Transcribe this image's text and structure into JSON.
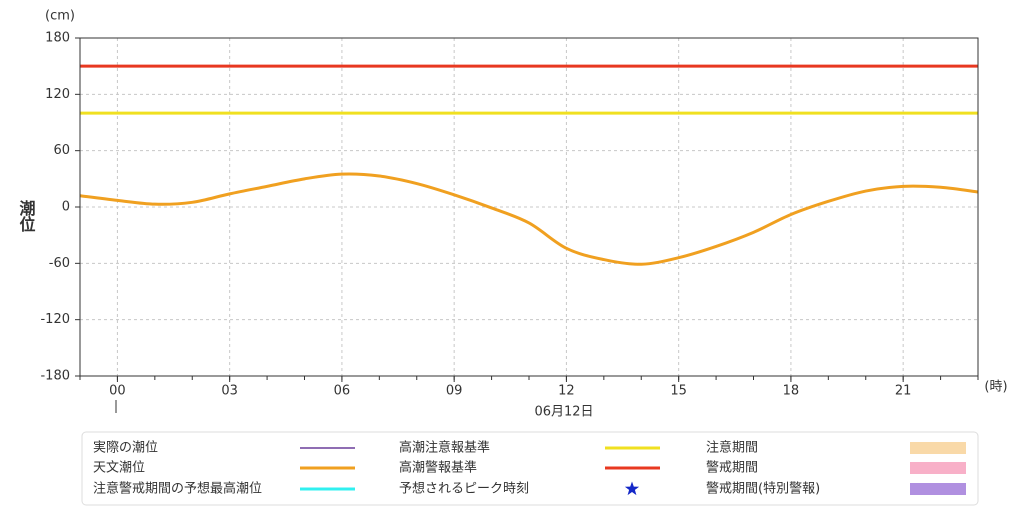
{
  "chart_data": {
    "type": "line",
    "y_label": "潮位",
    "y_unit": "(cm)",
    "x_unit": "(時)",
    "date_label": "06月12日",
    "x": [
      -1,
      0,
      1,
      2,
      3,
      4,
      5,
      6,
      7,
      8,
      9,
      10,
      11,
      12,
      13,
      14,
      15,
      16,
      17,
      18,
      19,
      20,
      21,
      22,
      23
    ],
    "xlim": [
      -1,
      23
    ],
    "xticks": [
      {
        "value": 0,
        "label": "00"
      },
      {
        "value": 3,
        "label": "03"
      },
      {
        "value": 6,
        "label": "06"
      },
      {
        "value": 9,
        "label": "09"
      },
      12,
      15,
      18,
      21
    ],
    "ylim": [
      -180,
      180
    ],
    "yticks": [
      180,
      120,
      60,
      0,
      -60,
      -120,
      -180
    ],
    "grid": true,
    "series": [
      {
        "name": "実際の潮位",
        "color": "#6a3d9a",
        "width": 1.5,
        "values": [
          null,
          null,
          null,
          null,
          null,
          null,
          null,
          null,
          null,
          null,
          null,
          null,
          null,
          null,
          null,
          null,
          null,
          null,
          null,
          null,
          null,
          null,
          null,
          null,
          null
        ]
      },
      {
        "name": "天文潮位",
        "color": "#f0a020",
        "width": 3,
        "values": [
          12,
          7,
          3,
          5,
          14,
          22,
          30,
          35,
          33,
          25,
          13,
          -1,
          -17,
          -44,
          -56,
          -61,
          -54,
          -42,
          -27,
          -8,
          6,
          17,
          22,
          21,
          16
        ]
      },
      {
        "name": "注意警戒期間の予想最高潮位",
        "color": "#30f0f0",
        "width": 3,
        "values": [
          null,
          null,
          null,
          null,
          null,
          null,
          null,
          null,
          null,
          null,
          null,
          null,
          null,
          null,
          null,
          null,
          null,
          null,
          null,
          null,
          null,
          null,
          null,
          null,
          null
        ]
      }
    ],
    "reference_lines": [
      {
        "name": "高潮注意報基準",
        "color": "#f0e020",
        "value": 100
      },
      {
        "name": "高潮警報基準",
        "color": "#e83820",
        "value": 150
      }
    ],
    "markers": [
      {
        "name": "予想されるピーク時刻",
        "color": "#1428c8"
      }
    ],
    "periods": [
      {
        "name": "注意期間",
        "color": "#f9d9a8"
      },
      {
        "name": "警戒期間",
        "color": "#f8b0c8"
      },
      {
        "name": "警戒期間(特別警報)",
        "color": "#b090e0"
      }
    ]
  }
}
